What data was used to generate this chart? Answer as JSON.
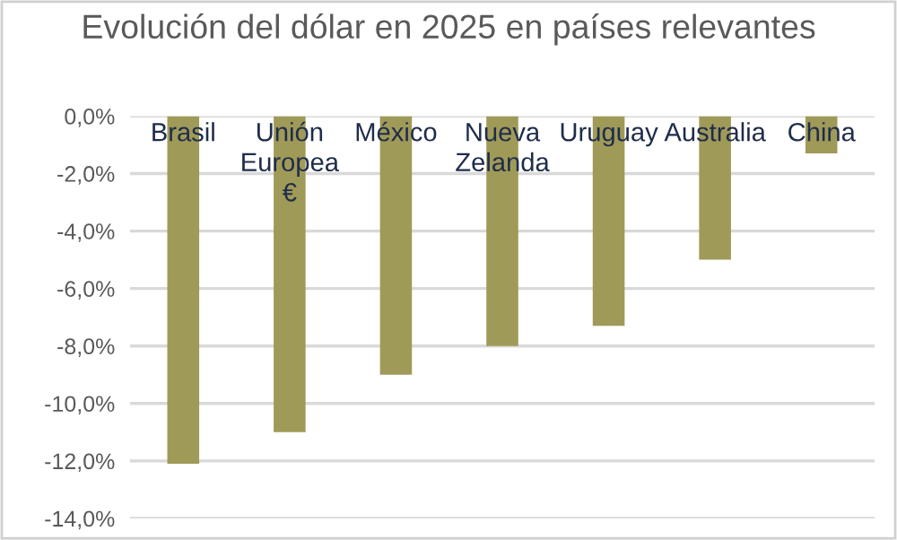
{
  "chart_data": {
    "type": "bar",
    "title": "Evolución del dólar en 2025 en países relevantes",
    "categories": [
      "Brasil",
      "Unión\nEuropea\n€",
      "México",
      "Nueva\nZelanda",
      "Uruguay",
      "Australia",
      "China"
    ],
    "values": [
      -12.1,
      -11.0,
      -9.0,
      -8.0,
      -7.3,
      -5.0,
      -1.3
    ],
    "color": "#a09a58",
    "ylim": [
      -14,
      0
    ],
    "yticks": [
      {
        "value": 0,
        "label": "0,0%"
      },
      {
        "value": -2,
        "label": "-2,0%"
      },
      {
        "value": -4,
        "label": "-4,0%"
      },
      {
        "value": -6,
        "label": "-6,0%"
      },
      {
        "value": -8,
        "label": "-8,0%"
      },
      {
        "value": -10,
        "label": "-10,0%"
      },
      {
        "value": -12,
        "label": "-12,0%"
      },
      {
        "value": -14,
        "label": "-14,0%"
      }
    ],
    "grid": "y"
  }
}
